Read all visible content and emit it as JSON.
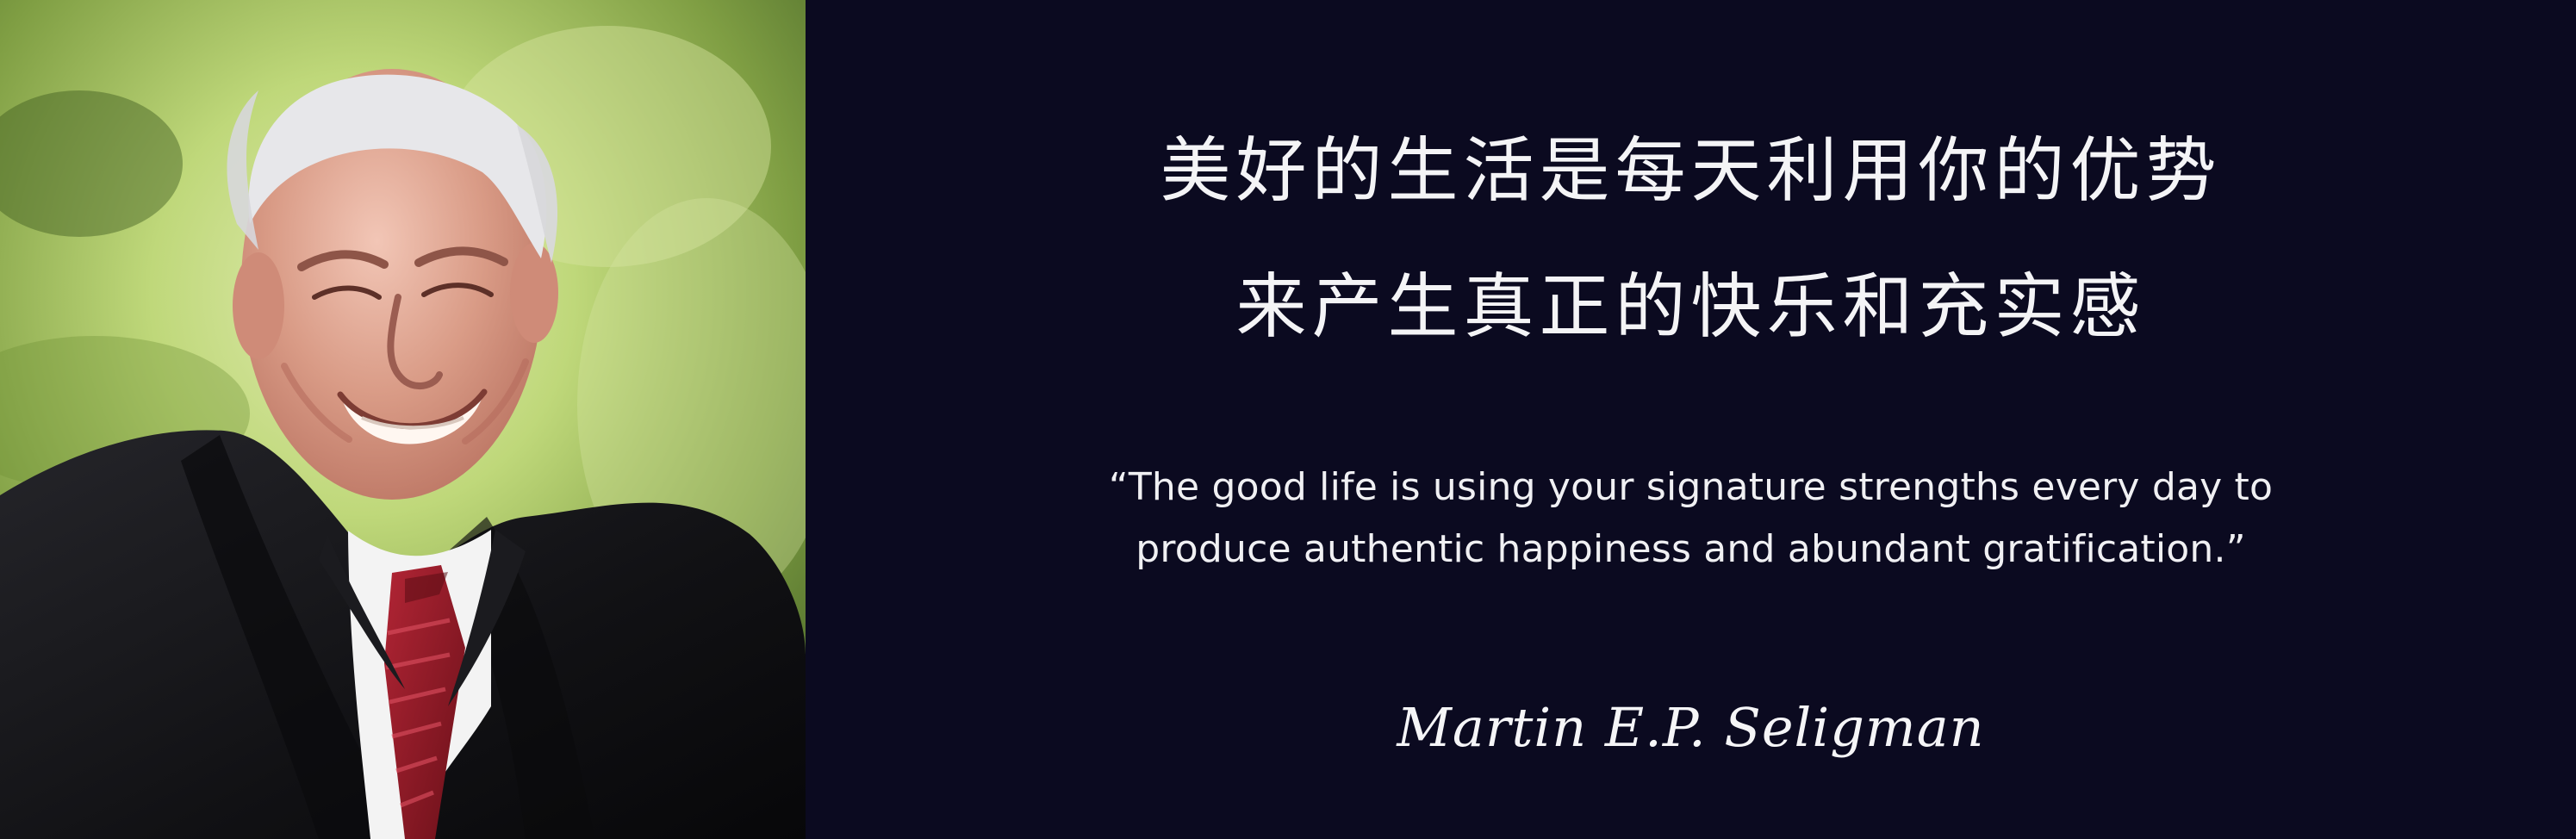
{
  "quote": {
    "cn_lines": [
      "美好的生活是每天利用你的优势",
      "来产生真正的快乐和充实感"
    ],
    "en_lines": [
      "“The good life is using your signature strengths every day to",
      "produce authentic happiness and abundant gratification.”"
    ],
    "author": "Martin E.P. Seligman"
  },
  "colors": {
    "background": "#0b0a20",
    "text": "#f4f4f6",
    "photo_backdrop_light": "#bfd87a",
    "photo_backdrop_dark": "#4d6b2a",
    "suit": "#111114",
    "tie": "#8d1c28"
  }
}
